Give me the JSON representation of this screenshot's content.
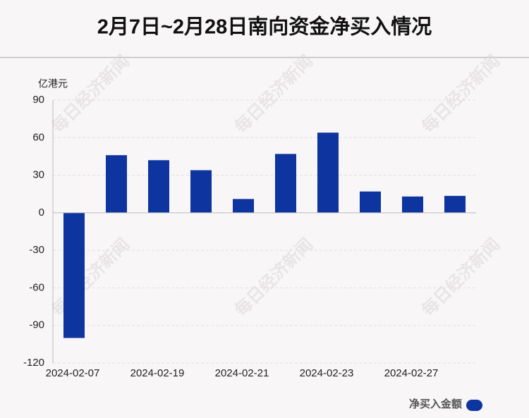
{
  "chart_data": {
    "type": "bar",
    "title": "2月7日~2月28日南向资金净买入情况",
    "y_label": "亿港元",
    "watermark": "每日经济新闻",
    "categories": [
      "2024-02-07",
      null,
      "2024-02-19",
      null,
      "2024-02-21",
      null,
      "2024-02-23",
      null,
      "2024-02-27",
      null
    ],
    "series": [
      {
        "name": "净买入金额",
        "color": "#0e34a0",
        "values": [
          -100,
          46,
          42,
          34,
          11,
          47,
          64,
          17,
          13,
          13.5
        ]
      }
    ],
    "ylim": [
      -120,
      90
    ],
    "yticks": [
      -120,
      -90,
      -60,
      -30,
      0,
      30,
      60,
      90
    ],
    "grid": true,
    "legend": "bottom-right"
  }
}
